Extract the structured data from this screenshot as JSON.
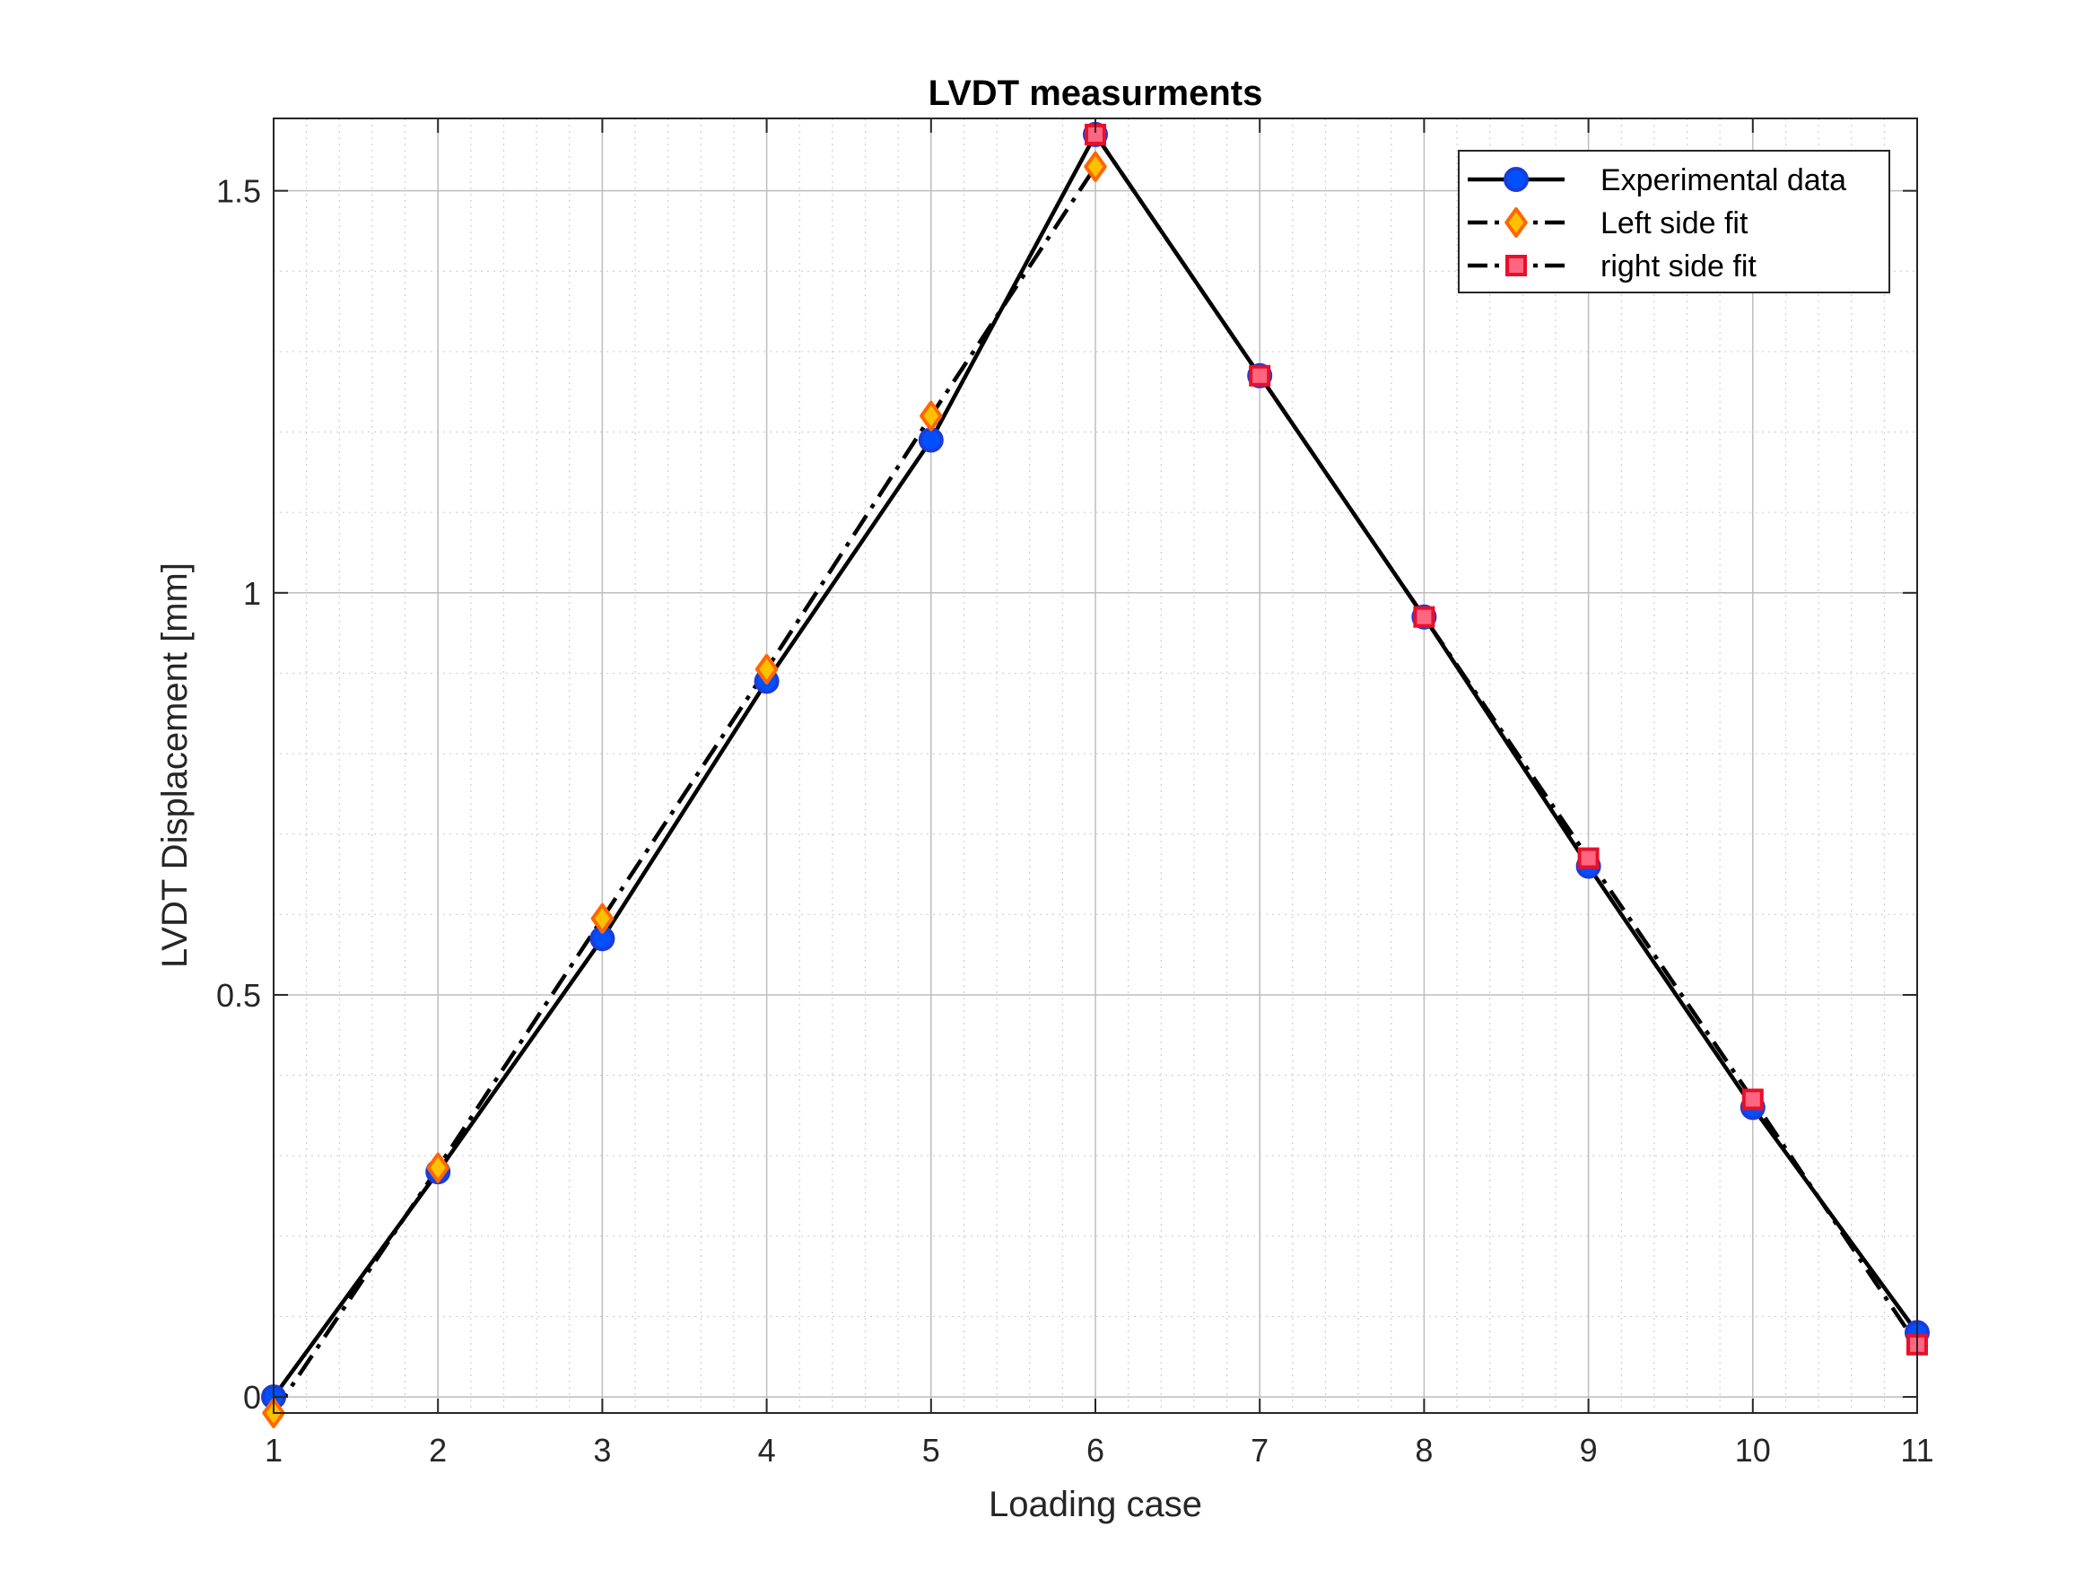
{
  "chart_data": {
    "type": "line",
    "title": "LVDT measurments",
    "xlabel": "Loading case",
    "ylabel": "LVDT Displacement [mm]",
    "xlim": [
      1,
      11
    ],
    "ylim": [
      -0.02,
      1.59
    ],
    "xticks": [
      1,
      2,
      3,
      4,
      5,
      6,
      7,
      8,
      9,
      10,
      11
    ],
    "xtick_labels": [
      "1",
      "2",
      "3",
      "4",
      "5",
      "6",
      "7",
      "8",
      "9",
      "10",
      "11"
    ],
    "yticks": [
      0,
      0.5,
      1,
      1.5
    ],
    "ytick_labels": [
      "0",
      "0.5",
      "1",
      "1.5"
    ],
    "grid": true,
    "minor_grid": true,
    "legend_position": "top-right",
    "series": [
      {
        "name": "Experimental data",
        "line": "solid",
        "marker": "circle",
        "marker_face": "#0050ff",
        "marker_edge": "#1a3cd8",
        "x": [
          1,
          2,
          3,
          4,
          5,
          6,
          7,
          8,
          9,
          10,
          11
        ],
        "y": [
          0.0,
          0.28,
          0.57,
          0.89,
          1.19,
          1.57,
          1.27,
          0.97,
          0.66,
          0.36,
          0.08
        ]
      },
      {
        "name": "Left side fit",
        "line": "dashdot",
        "marker": "diamond",
        "marker_face": "#ffc000",
        "marker_edge": "#ff6600",
        "x": [
          1,
          2,
          3,
          4,
          5,
          6
        ],
        "y": [
          -0.02,
          0.285,
          0.595,
          0.905,
          1.22,
          1.53
        ]
      },
      {
        "name": "right side fit",
        "line": "dashdot",
        "marker": "square",
        "marker_face": "#ff6680",
        "marker_edge": "#e8102a",
        "x": [
          6,
          7,
          8,
          9,
          10,
          11
        ],
        "y": [
          1.57,
          1.27,
          0.97,
          0.67,
          0.37,
          0.065
        ]
      }
    ],
    "colors": {
      "line": "#000000",
      "grid": "#cfcfcf",
      "axis": "#262626"
    }
  }
}
